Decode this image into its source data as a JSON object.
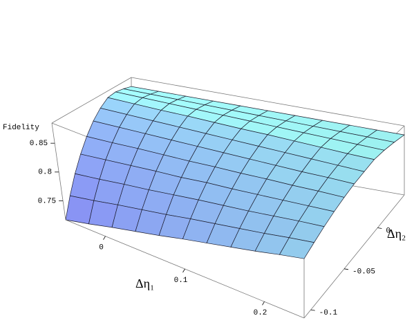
{
  "chart_data": {
    "type": "surface",
    "zlabel": "Fidelity",
    "xlabel": "Δη₁",
    "ylabel": "Δη₂",
    "xlim": [
      -0.05,
      0.25
    ],
    "ylim": [
      -0.11,
      0.04
    ],
    "zlim": [
      0.717,
      0.885
    ],
    "xticks": [
      0,
      0.1,
      0.2
    ],
    "yticks": [
      -0.1,
      -0.05,
      0
    ],
    "zticks": [
      0.75,
      0.8,
      0.85
    ],
    "colormap": [
      "#8890f4",
      "#a6ffff"
    ],
    "mesh_color": "#1a1a2a",
    "box_color": "#777777",
    "x": [
      -0.05,
      -0.02,
      0.01,
      0.04,
      0.07,
      0.1,
      0.13,
      0.16,
      0.19,
      0.22,
      0.25
    ],
    "y": [
      -0.11,
      -0.095,
      -0.08,
      -0.065,
      -0.05,
      -0.035,
      -0.02,
      -0.005,
      0.01,
      0.025,
      0.04
    ],
    "z": [
      [
        0.717,
        0.727,
        0.738,
        0.748,
        0.758,
        0.769,
        0.779,
        0.789,
        0.799,
        0.81,
        0.82
      ],
      [
        0.747,
        0.755,
        0.764,
        0.772,
        0.78,
        0.789,
        0.797,
        0.805,
        0.813,
        0.822,
        0.83
      ],
      [
        0.775,
        0.781,
        0.788,
        0.794,
        0.801,
        0.808,
        0.814,
        0.82,
        0.827,
        0.834,
        0.84
      ],
      [
        0.8,
        0.805,
        0.81,
        0.815,
        0.819,
        0.825,
        0.829,
        0.834,
        0.839,
        0.844,
        0.849
      ],
      [
        0.823,
        0.826,
        0.83,
        0.833,
        0.836,
        0.84,
        0.843,
        0.847,
        0.85,
        0.854,
        0.857
      ],
      [
        0.843,
        0.845,
        0.847,
        0.849,
        0.851,
        0.853,
        0.855,
        0.857,
        0.859,
        0.862,
        0.864
      ],
      [
        0.859,
        0.86,
        0.861,
        0.862,
        0.863,
        0.864,
        0.865,
        0.866,
        0.867,
        0.868,
        0.869
      ],
      [
        0.871,
        0.871,
        0.871,
        0.872,
        0.872,
        0.872,
        0.873,
        0.873,
        0.873,
        0.873,
        0.874
      ],
      [
        0.873,
        0.873,
        0.873,
        0.873,
        0.873,
        0.873,
        0.873,
        0.873,
        0.873,
        0.873,
        0.873
      ],
      [
        0.869,
        0.869,
        0.869,
        0.869,
        0.869,
        0.869,
        0.869,
        0.869,
        0.869,
        0.869,
        0.869
      ],
      [
        0.863,
        0.863,
        0.863,
        0.863,
        0.863,
        0.863,
        0.863,
        0.863,
        0.863,
        0.863,
        0.863
      ]
    ]
  }
}
